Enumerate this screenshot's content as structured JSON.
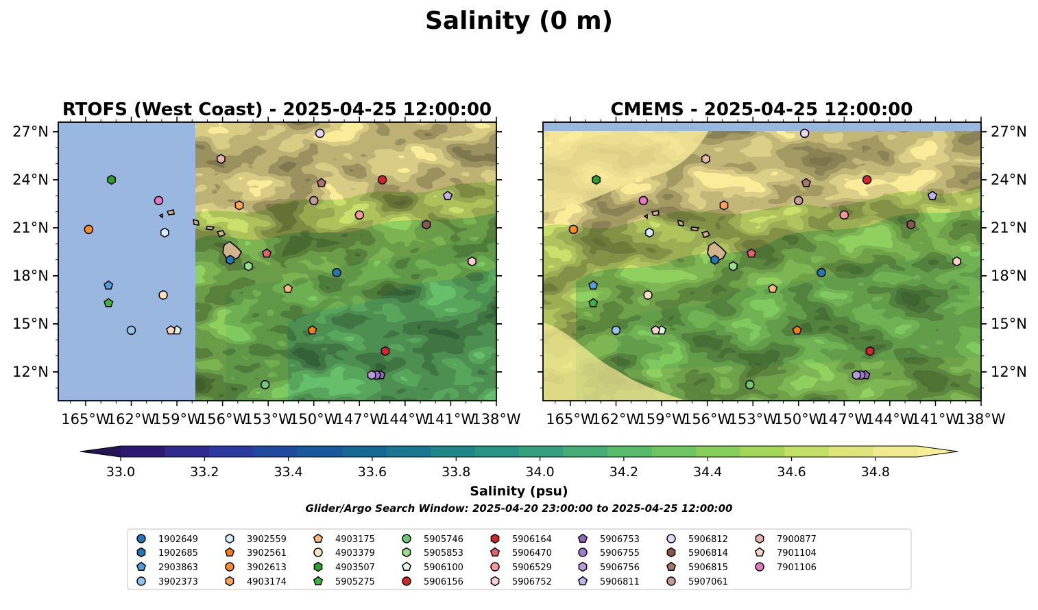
{
  "title": "Salinity (0 m)",
  "panels": [
    {
      "title": "RTOFS (West Coast) - 2025-04-25 12:00:00"
    },
    {
      "title": "CMEMS - 2025-04-25 12:00:00"
    }
  ],
  "colorbar": {
    "label": "Salinity (psu)",
    "ticks": [
      "33.0",
      "33.2",
      "33.4",
      "33.6",
      "33.8",
      "34.0",
      "34.2",
      "34.4",
      "34.6",
      "34.8"
    ],
    "range": [
      33.0,
      34.9
    ],
    "step": 0.1,
    "extend": "both",
    "colors": [
      "#2d1a6e",
      "#2f2a8e",
      "#2a3aa0",
      "#1f4a9e",
      "#17599a",
      "#156894",
      "#18778e",
      "#1e8589",
      "#299384",
      "#36a07e",
      "#45ae75",
      "#58bb6b",
      "#6dc660",
      "#86cf58",
      "#a3d75a",
      "#c3e066",
      "#e0e57a",
      "#f2ea8e"
    ]
  },
  "note": "Glider/Argo Search Window: 2025-04-20 23:00:00 to 2025-04-25 12:00:00",
  "chart_data": [
    {
      "type": "map",
      "title": "RTOFS (West Coast) - 2025-04-25 12:00:00",
      "x_ticks": [
        "165°W",
        "162°W",
        "159°W",
        "156°W",
        "153°W",
        "150°W",
        "147°W",
        "144°W",
        "141°W",
        "138°W"
      ],
      "y_ticks": [
        "27°N",
        "24°N",
        "21°N",
        "18°N",
        "15°N",
        "12°N"
      ],
      "xlim": [
        -166.8,
        -138
      ],
      "ylim": [
        10.2,
        27.6
      ],
      "no_data_west_of_lon": -157.8,
      "no_data_color": "#9ab7e0"
    },
    {
      "type": "map",
      "title": "CMEMS - 2025-04-25 12:00:00",
      "x_ticks": [
        "165°W",
        "162°W",
        "159°W",
        "156°W",
        "153°W",
        "150°W",
        "147°W",
        "144°W",
        "141°W",
        "138°W"
      ],
      "y_ticks": [
        "27°N",
        "24°N",
        "21°N",
        "18°N",
        "15°N",
        "12°N"
      ],
      "xlim": [
        -166.8,
        -138
      ],
      "ylim": [
        10.2,
        27.6
      ],
      "no_data_north_of_lat": 27.1,
      "no_data_color": "#9ab7e0"
    }
  ],
  "floats": [
    {
      "id": "1902649",
      "marker": "circle",
      "color": "#1f77b4",
      "lon": -148.5,
      "lat": 18.2
    },
    {
      "id": "1902685",
      "marker": "hexagon",
      "color": "#1f77b4",
      "lon": -155.5,
      "lat": 19.0
    },
    {
      "id": "2903863",
      "marker": "pentagon",
      "color": "#4e9fe0",
      "lon": -163.5,
      "lat": 17.4
    },
    {
      "id": "3902373",
      "marker": "circle",
      "color": "#8ec6ee",
      "lon": -162.0,
      "lat": 14.6
    },
    {
      "id": "3902559",
      "marker": "hexagon",
      "color": "#d6eefc",
      "lon": -159.8,
      "lat": 20.7
    },
    {
      "id": "3902561",
      "marker": "pentagon",
      "color": "#ff7f0e",
      "lon": -150.1,
      "lat": 14.6
    },
    {
      "id": "3902613",
      "marker": "circle",
      "color": "#ff8c24",
      "lon": -164.8,
      "lat": 20.9
    },
    {
      "id": "4903174",
      "marker": "hexagon",
      "color": "#ffa54f",
      "lon": -154.9,
      "lat": 22.4
    },
    {
      "id": "4903175",
      "marker": "pentagon",
      "color": "#ffbb78",
      "lon": -151.7,
      "lat": 17.2
    },
    {
      "id": "4903379",
      "marker": "circle",
      "color": "#ffe2c0",
      "lon": -159.9,
      "lat": 16.8
    },
    {
      "id": "4903507",
      "marker": "hexagon",
      "color": "#2ca02c",
      "lon": -163.3,
      "lat": 24.0
    },
    {
      "id": "5905275",
      "marker": "pentagon",
      "color": "#3cb33c",
      "lon": -163.5,
      "lat": 16.3
    },
    {
      "id": "5905746",
      "marker": "circle",
      "color": "#70c870",
      "lon": -153.2,
      "lat": 11.2
    },
    {
      "id": "5905853",
      "marker": "hexagon",
      "color": "#98df8a",
      "lon": -154.3,
      "lat": 18.6
    },
    {
      "id": "5906100",
      "marker": "pentagon",
      "color": "#dcf8dc",
      "lon": -159.0,
      "lat": 14.6
    },
    {
      "id": "5906156",
      "marker": "circle",
      "color": "#d62728",
      "lon": -145.5,
      "lat": 24.0
    },
    {
      "id": "5906164",
      "marker": "hexagon",
      "color": "#d62728",
      "lon": -145.3,
      "lat": 13.3
    },
    {
      "id": "5906470",
      "marker": "pentagon",
      "color": "#e8606a",
      "lon": -153.1,
      "lat": 19.4
    },
    {
      "id": "5906529",
      "marker": "circle",
      "color": "#ff9896",
      "lon": -147.0,
      "lat": 21.8
    },
    {
      "id": "5906752",
      "marker": "hexagon",
      "color": "#ffd0d0",
      "lon": -139.6,
      "lat": 18.9
    },
    {
      "id": "5906753",
      "marker": "pentagon",
      "color": "#9467bd",
      "lon": -145.6,
      "lat": 11.8
    },
    {
      "id": "5906755",
      "marker": "circle",
      "color": "#a07ad0",
      "lon": -145.9,
      "lat": 11.8
    },
    {
      "id": "5906756",
      "marker": "hexagon",
      "color": "#b79ae0",
      "lon": -146.2,
      "lat": 11.8
    },
    {
      "id": "5906811",
      "marker": "pentagon",
      "color": "#c5b0f0",
      "lon": -141.2,
      "lat": 23.0
    },
    {
      "id": "5906812",
      "marker": "circle",
      "color": "#e6d6fa",
      "lon": -149.6,
      "lat": 26.9
    },
    {
      "id": "5906814",
      "marker": "hexagon",
      "color": "#8c564b",
      "lon": -142.6,
      "lat": 21.2
    },
    {
      "id": "5906815",
      "marker": "pentagon",
      "color": "#a8776b",
      "lon": -149.5,
      "lat": 23.8
    },
    {
      "id": "5907061",
      "marker": "circle",
      "color": "#c49c94",
      "lon": -150.0,
      "lat": 22.7
    },
    {
      "id": "7900877",
      "marker": "hexagon",
      "color": "#e8b4a8",
      "lon": -156.1,
      "lat": 25.3
    },
    {
      "id": "7901104",
      "marker": "pentagon",
      "color": "#fcd8c4",
      "lon": -159.4,
      "lat": 14.6
    },
    {
      "id": "7901106",
      "marker": "circle",
      "color": "#e377c2",
      "lon": -160.2,
      "lat": 22.7
    }
  ]
}
